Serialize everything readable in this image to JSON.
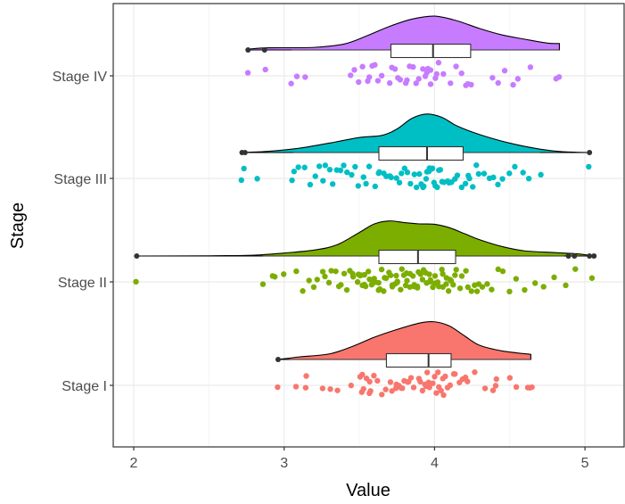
{
  "chart_data": {
    "type": "raincloud",
    "title": "",
    "xlabel": "Value",
    "ylabel": "Stage",
    "xlim": [
      1.87,
      5.2
    ],
    "x_ticks": [
      2,
      3,
      4,
      5
    ],
    "x_tick_labels": [
      "2",
      "3",
      "4",
      "5"
    ],
    "categories": [
      "Stage I",
      "Stage II",
      "Stage III",
      "Stage IV"
    ],
    "grid": true,
    "legend": "none",
    "series": [
      {
        "name": "Stage I",
        "color": "#F8766D",
        "box": {
          "whisker_low": 3.04,
          "q1": 3.68,
          "median": 3.96,
          "q3": 4.11,
          "whisker_high": 4.64
        },
        "outliers": [
          2.96
        ],
        "density": [
          [
            2.96,
            0.0
          ],
          [
            3.1,
            0.06
          ],
          [
            3.3,
            0.13
          ],
          [
            3.45,
            0.3
          ],
          [
            3.6,
            0.52
          ],
          [
            3.75,
            0.7
          ],
          [
            3.9,
            0.85
          ],
          [
            4.0,
            0.88
          ],
          [
            4.1,
            0.78
          ],
          [
            4.2,
            0.55
          ],
          [
            4.3,
            0.33
          ],
          [
            4.45,
            0.2
          ],
          [
            4.64,
            0.12
          ]
        ],
        "points": [
          2.96,
          3.07,
          3.14,
          3.14,
          3.25,
          3.31,
          3.36,
          3.45,
          3.5,
          3.51,
          3.52,
          3.53,
          3.55,
          3.56,
          3.57,
          3.58,
          3.6,
          3.62,
          3.65,
          3.68,
          3.7,
          3.72,
          3.74,
          3.75,
          3.77,
          3.78,
          3.79,
          3.8,
          3.82,
          3.83,
          3.85,
          3.87,
          3.9,
          3.91,
          3.92,
          3.93,
          3.94,
          3.95,
          3.96,
          3.97,
          3.98,
          4.0,
          4.01,
          4.02,
          4.03,
          4.04,
          4.05,
          4.06,
          4.07,
          4.08,
          4.1,
          4.12,
          4.14,
          4.16,
          4.18,
          4.2,
          4.22,
          4.27,
          4.33,
          4.38,
          4.4,
          4.42,
          4.5,
          4.54,
          4.62,
          4.64,
          4.64
        ]
      },
      {
        "name": "Stage II",
        "color": "#7CAE00",
        "box": {
          "whisker_low": 2.86,
          "q1": 3.63,
          "median": 3.89,
          "q3": 4.14,
          "whisker_high": 4.86
        },
        "outliers": [
          2.02,
          4.89,
          4.93,
          5.03,
          5.06
        ],
        "density": [
          [
            2.02,
            0.0
          ],
          [
            2.5,
            0.005
          ],
          [
            2.8,
            0.02
          ],
          [
            3.0,
            0.07
          ],
          [
            3.2,
            0.14
          ],
          [
            3.35,
            0.26
          ],
          [
            3.5,
            0.55
          ],
          [
            3.6,
            0.75
          ],
          [
            3.7,
            0.82
          ],
          [
            3.8,
            0.78
          ],
          [
            3.9,
            0.75
          ],
          [
            4.0,
            0.74
          ],
          [
            4.1,
            0.66
          ],
          [
            4.2,
            0.52
          ],
          [
            4.3,
            0.38
          ],
          [
            4.45,
            0.22
          ],
          [
            4.6,
            0.12
          ],
          [
            4.8,
            0.08
          ],
          [
            4.95,
            0.05
          ],
          [
            5.06,
            0.0
          ]
        ],
        "points": [
          2.02,
          2.86,
          2.92,
          2.94,
          3.0,
          3.08,
          3.12,
          3.16,
          3.2,
          3.22,
          3.25,
          3.28,
          3.3,
          3.32,
          3.35,
          3.36,
          3.38,
          3.4,
          3.42,
          3.43,
          3.45,
          3.46,
          3.48,
          3.49,
          3.5,
          3.51,
          3.52,
          3.53,
          3.54,
          3.55,
          3.56,
          3.57,
          3.58,
          3.59,
          3.6,
          3.61,
          3.62,
          3.63,
          3.64,
          3.65,
          3.66,
          3.67,
          3.68,
          3.69,
          3.7,
          3.71,
          3.72,
          3.73,
          3.74,
          3.75,
          3.76,
          3.77,
          3.78,
          3.79,
          3.8,
          3.81,
          3.82,
          3.83,
          3.84,
          3.85,
          3.86,
          3.87,
          3.88,
          3.89,
          3.9,
          3.91,
          3.92,
          3.93,
          3.94,
          3.95,
          3.96,
          3.97,
          3.98,
          3.99,
          4.0,
          4.01,
          4.02,
          4.03,
          4.04,
          4.05,
          4.06,
          4.07,
          4.08,
          4.09,
          4.1,
          4.11,
          4.12,
          4.14,
          4.15,
          4.17,
          4.19,
          4.2,
          4.22,
          4.24,
          4.26,
          4.28,
          4.3,
          4.32,
          4.35,
          4.38,
          4.42,
          4.46,
          4.5,
          4.55,
          4.6,
          4.66,
          4.72,
          4.8,
          4.88,
          4.93,
          5.04
        ]
      },
      {
        "name": "Stage III",
        "color": "#00BFC4",
        "box": {
          "whisker_low": 3.06,
          "q1": 3.63,
          "median": 3.95,
          "q3": 4.19,
          "whisker_high": 4.7
        },
        "outliers": [
          2.72,
          2.74,
          5.03
        ],
        "density": [
          [
            2.72,
            0.0
          ],
          [
            2.9,
            0.03
          ],
          [
            3.1,
            0.1
          ],
          [
            3.3,
            0.22
          ],
          [
            3.5,
            0.35
          ],
          [
            3.65,
            0.4
          ],
          [
            3.75,
            0.55
          ],
          [
            3.85,
            0.8
          ],
          [
            3.95,
            0.9
          ],
          [
            4.05,
            0.82
          ],
          [
            4.15,
            0.62
          ],
          [
            4.3,
            0.42
          ],
          [
            4.5,
            0.22
          ],
          [
            4.7,
            0.08
          ],
          [
            4.85,
            0.02
          ],
          [
            5.03,
            0.0
          ]
        ],
        "points": [
          2.72,
          2.74,
          2.82,
          3.06,
          3.07,
          3.1,
          3.14,
          3.18,
          3.2,
          3.23,
          3.26,
          3.28,
          3.3,
          3.32,
          3.35,
          3.37,
          3.4,
          3.42,
          3.45,
          3.48,
          3.5,
          3.52,
          3.55,
          3.57,
          3.6,
          3.62,
          3.64,
          3.66,
          3.68,
          3.7,
          3.72,
          3.74,
          3.76,
          3.78,
          3.8,
          3.82,
          3.84,
          3.86,
          3.88,
          3.9,
          3.91,
          3.92,
          3.93,
          3.94,
          3.95,
          3.96,
          3.97,
          3.98,
          3.99,
          4.0,
          4.01,
          4.02,
          4.03,
          4.04,
          4.05,
          4.06,
          4.08,
          4.1,
          4.12,
          4.14,
          4.16,
          4.18,
          4.2,
          4.22,
          4.24,
          4.26,
          4.28,
          4.3,
          4.33,
          4.36,
          4.4,
          4.43,
          4.46,
          4.5,
          4.54,
          4.58,
          4.62,
          4.7,
          5.02
        ]
      },
      {
        "name": "Stage IV",
        "color": "#C77CFF",
        "box": {
          "whisker_low": 3.05,
          "q1": 3.71,
          "median": 3.99,
          "q3": 4.24,
          "whisker_high": 4.83
        },
        "outliers": [
          2.76,
          2.87
        ],
        "density": [
          [
            2.76,
            0.02
          ],
          [
            2.9,
            0.05
          ],
          [
            3.2,
            0.06
          ],
          [
            3.4,
            0.14
          ],
          [
            3.55,
            0.33
          ],
          [
            3.7,
            0.55
          ],
          [
            3.85,
            0.72
          ],
          [
            4.0,
            0.79
          ],
          [
            4.15,
            0.68
          ],
          [
            4.3,
            0.5
          ],
          [
            4.45,
            0.35
          ],
          [
            4.6,
            0.25
          ],
          [
            4.75,
            0.16
          ],
          [
            4.83,
            0.15
          ]
        ],
        "points": [
          2.76,
          2.87,
          3.05,
          3.09,
          3.14,
          3.45,
          3.47,
          3.5,
          3.52,
          3.55,
          3.56,
          3.58,
          3.6,
          3.63,
          3.65,
          3.7,
          3.71,
          3.73,
          3.75,
          3.78,
          3.8,
          3.82,
          3.84,
          3.86,
          3.88,
          3.9,
          3.92,
          3.94,
          3.95,
          3.96,
          3.97,
          3.98,
          4.0,
          4.01,
          4.03,
          4.05,
          4.1,
          4.14,
          4.18,
          4.2,
          4.23,
          4.25,
          4.38,
          4.42,
          4.47,
          4.52,
          4.55,
          4.64,
          4.8,
          4.83
        ]
      }
    ]
  }
}
